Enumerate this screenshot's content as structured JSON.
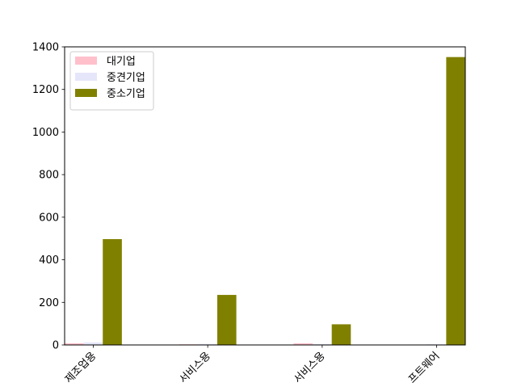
{
  "chart_data": {
    "type": "bar",
    "categories": [
      "제조업용",
      "서비스용",
      "서비스용",
      "프트웨어"
    ],
    "series": [
      {
        "name": "대기업",
        "values": [
          8,
          3,
          8,
          2
        ],
        "color": "#ffc0cb"
      },
      {
        "name": "중견기업",
        "values": [
          12,
          5,
          4,
          3
        ],
        "color": "#e6e6fa"
      },
      {
        "name": "중소기업",
        "values": [
          497,
          235,
          97,
          1352
        ],
        "color": "#808000"
      }
    ],
    "ylim": [
      0,
      1400
    ],
    "yticks": [
      "0",
      "200",
      "400",
      "600",
      "800",
      "1000",
      "1200",
      "1400"
    ],
    "title": "",
    "xlabel": "",
    "ylabel": "",
    "legend_position": "top-left",
    "grid": false
  }
}
